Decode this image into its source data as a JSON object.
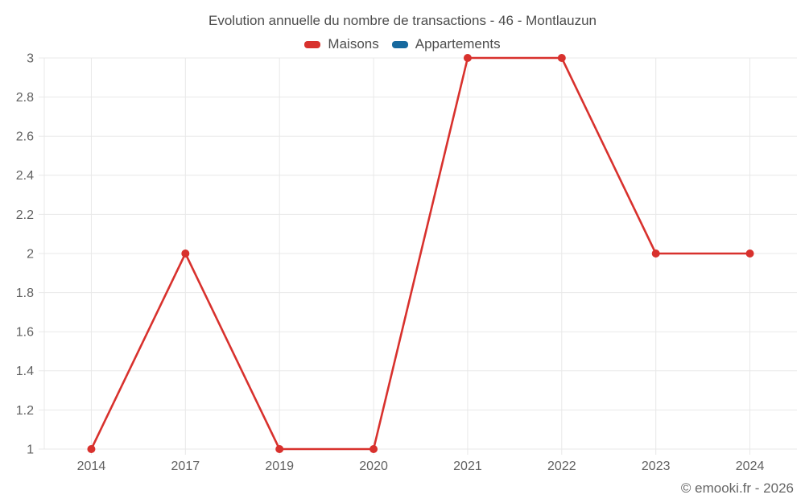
{
  "chart": {
    "title": "Evolution annuelle du nombre de transactions - 46 - Montlauzun"
  },
  "legend": {
    "items": [
      {
        "label": "Maisons",
        "color": "#d8312d"
      },
      {
        "label": "Appartements",
        "color": "#17699e"
      }
    ]
  },
  "chart_data": {
    "type": "line",
    "title": "Evolution annuelle du nombre de transactions - 46 - Montlauzun",
    "categories": [
      "2014",
      "2017",
      "2019",
      "2020",
      "2021",
      "2022",
      "2023",
      "2024"
    ],
    "series": [
      {
        "name": "Maisons",
        "color": "#d8312d",
        "values": [
          1,
          2,
          1,
          1,
          3,
          3,
          2,
          2
        ]
      },
      {
        "name": "Appartements",
        "color": "#17699e",
        "values": []
      }
    ],
    "xlabel": "",
    "ylabel": "",
    "ylim": [
      1,
      3
    ],
    "yticks": [
      1,
      1.2,
      1.4,
      1.6,
      1.8,
      2,
      2.2,
      2.4,
      2.6,
      2.8,
      3
    ],
    "ytick_labels": [
      "1",
      "1.2",
      "1.4",
      "1.6",
      "1.8",
      "2",
      "2.2",
      "2.4",
      "2.6",
      "2.8",
      "3"
    ],
    "grid": true,
    "legend_position": "top",
    "marker_radius": 5,
    "line_width": 2.6
  },
  "footer": {
    "copyright": "© emooki.fr - 2026"
  },
  "colors": {
    "grid": "#e8e8e8",
    "axis_text": "#616161",
    "title_text": "#4d4d4d"
  }
}
